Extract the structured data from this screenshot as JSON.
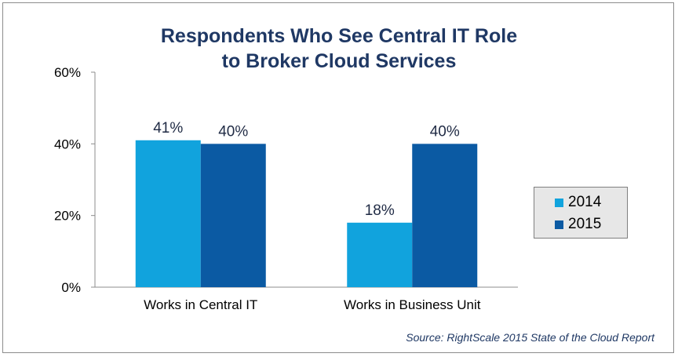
{
  "title_lines": [
    "Respondents Who See Central IT Role",
    "to Broker Cloud Services"
  ],
  "source": "Source: RightScale 2015 State of the Cloud Report",
  "colors": {
    "2014": "#11a3dd",
    "2015": "#0b5aa3",
    "title": "#1f3864",
    "legend_bg": "#e7e7e7"
  },
  "chart_data": {
    "type": "bar",
    "title": "Respondents Who See Central IT Role to Broker Cloud Services",
    "categories": [
      "Works in Central IT",
      "Works in Business Unit"
    ],
    "series": [
      {
        "name": "2014",
        "values": [
          41,
          18
        ],
        "labels": [
          "41%",
          "18%"
        ]
      },
      {
        "name": "2015",
        "values": [
          40,
          40
        ],
        "labels": [
          "40%",
          "40%"
        ]
      }
    ],
    "ylim": [
      0,
      60
    ],
    "yticks": [
      0,
      20,
      40,
      60
    ],
    "ytick_labels": [
      "0%",
      "20%",
      "40%",
      "60%"
    ],
    "xlabel": "",
    "ylabel": "",
    "grid": false,
    "legend_position": "right"
  }
}
